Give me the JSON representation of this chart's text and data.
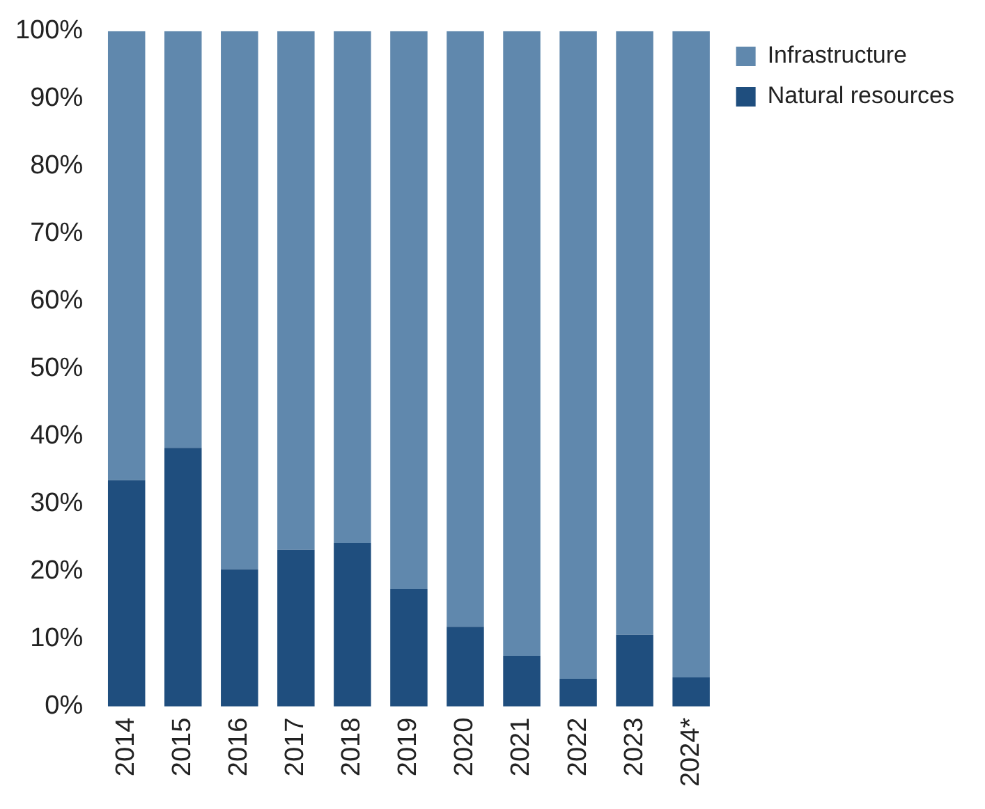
{
  "chart_data": {
    "type": "bar",
    "stacked": true,
    "categories": [
      "2014",
      "2015",
      "2016",
      "2017",
      "2018",
      "2019",
      "2020",
      "2021",
      "2022",
      "2023",
      "2024*"
    ],
    "series": [
      {
        "name": "Natural resources",
        "color": "#1f4e7e",
        "values": [
          33.5,
          38.3,
          20.3,
          23.2,
          24.2,
          17.4,
          11.8,
          7.5,
          4.1,
          10.6,
          4.3
        ]
      },
      {
        "name": "Infrastructure",
        "color": "#6088ad",
        "values": [
          66.5,
          61.7,
          79.7,
          76.8,
          75.8,
          82.6,
          88.2,
          92.5,
          95.9,
          89.4,
          95.7
        ]
      }
    ],
    "ylim": [
      0,
      100
    ],
    "yticks": [
      {
        "value": 0,
        "label": "0%"
      },
      {
        "value": 10,
        "label": "10%"
      },
      {
        "value": 20,
        "label": "20%"
      },
      {
        "value": 30,
        "label": "30%"
      },
      {
        "value": 40,
        "label": "40%"
      },
      {
        "value": 50,
        "label": "50%"
      },
      {
        "value": 60,
        "label": "60%"
      },
      {
        "value": 70,
        "label": "70%"
      },
      {
        "value": 80,
        "label": "80%"
      },
      {
        "value": 90,
        "label": "90%"
      },
      {
        "value": 100,
        "label": "100%"
      }
    ],
    "grid": false,
    "legend": "top right"
  }
}
